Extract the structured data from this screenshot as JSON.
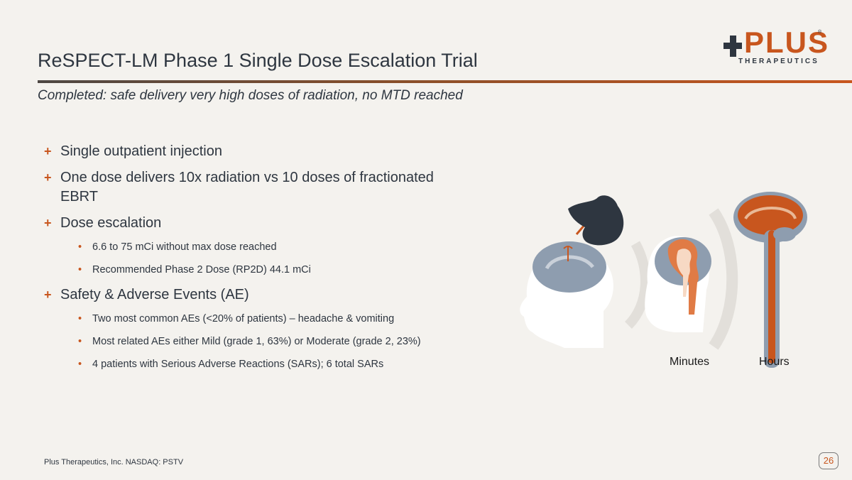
{
  "slide": {
    "title": "ReSPECT-LM Phase 1 Single Dose Escalation Trial",
    "subtitle": "Completed: safe delivery very high doses of radiation, no MTD reached",
    "logo": {
      "word": "PLUS",
      "sub": "THERAPEUTICS",
      "mark": "®"
    },
    "bullets": {
      "b1": "Single outpatient injection",
      "b2": "One dose delivers 10x radiation vs 10 doses of fractionated EBRT",
      "b3": "Dose escalation",
      "b3_sub1": "6.6 to 75 mCi without max dose reached",
      "b3_sub2": "Recommended Phase 2 Dose (RP2D) 44.1 mCi",
      "b4": "Safety & Adverse Events (AE)",
      "b4_sub1": "Two most common AEs (<20% of patients) – headache & vomiting",
      "b4_sub2": "Most related AEs either Mild (grade 1, 63%) or Moderate (grade 2, 23%)",
      "b4_sub3": "4 patients with Serious Adverse Reactions (SARs); 6 total SARs"
    },
    "illustration": {
      "label_minutes": "Minutes",
      "label_hours": "Hours"
    },
    "footer": "Plus Therapeutics, Inc.  NASDAQ:  PSTV",
    "page_number": "26"
  },
  "colors": {
    "accent": "#c8561e",
    "text": "#2e3640",
    "background": "#f4f2ee"
  },
  "icons": {
    "bullet_primary": "+",
    "bullet_secondary": "•"
  }
}
